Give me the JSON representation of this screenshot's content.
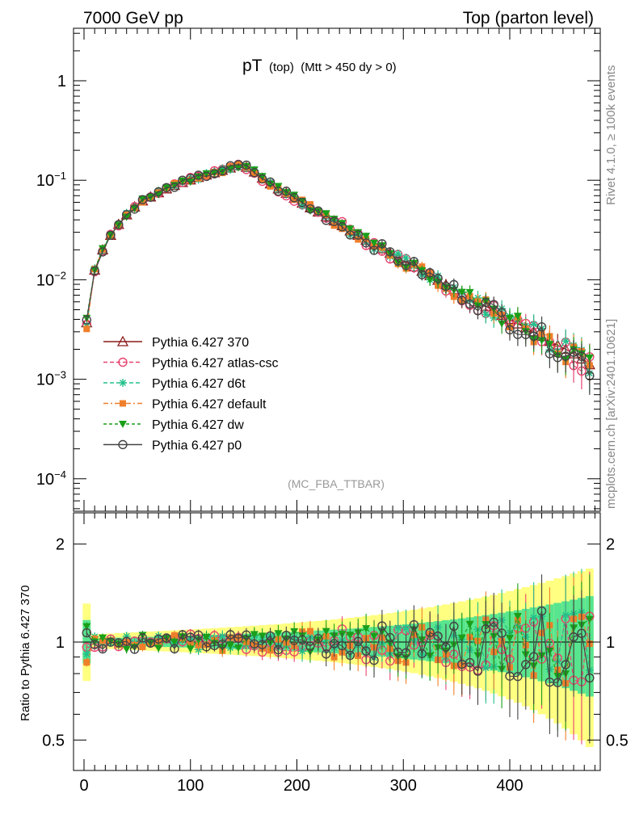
{
  "header": {
    "left": "7000 GeV pp",
    "right": "Top (parton level)"
  },
  "side_labels": {
    "rivet": "Rivet 4.1.0, ≥ 100k events",
    "mcplots": "mcplots.cern.ch [arXiv:2401.10621]"
  },
  "chart_data": {
    "type": "line",
    "title_main": "pT",
    "title_sub1": "(top)",
    "title_sub2": "(Mtt > 450 dy > 0)",
    "watermark": "(MC_FBA_TTBAR)",
    "xlabel": "",
    "ylabel": "",
    "ratio_ylabel": "Ratio to Pythia 6.427 370",
    "xlim": [
      -10,
      485
    ],
    "ylim": [
      3e-05,
      3
    ],
    "ratio_ylim": [
      0.37,
      2.3
    ],
    "x_ticks": [
      "0",
      "100",
      "200",
      "300",
      "400"
    ],
    "y_ticks": [
      {
        "m": "10",
        "e": "−4"
      },
      {
        "m": "10",
        "e": "−3"
      },
      {
        "m": "10",
        "e": "−2"
      },
      {
        "m": "10",
        "e": "−1"
      },
      {
        "m": "1",
        "e": ""
      }
    ],
    "ratio_ticks": [
      "0.5",
      "1",
      "2"
    ],
    "x": [
      2.5,
      10,
      17.5,
      25,
      32.5,
      40,
      47.5,
      55,
      62.5,
      70,
      77.5,
      85,
      92.5,
      100,
      107.5,
      115,
      122.5,
      130,
      137.5,
      145,
      152.5,
      160,
      167.5,
      175,
      182.5,
      190,
      197.5,
      205,
      212.5,
      220,
      227.5,
      235,
      242.5,
      250,
      257.5,
      265,
      272.5,
      280,
      287.5,
      295,
      302.5,
      310,
      317.5,
      325,
      332.5,
      340,
      347.5,
      355,
      362.5,
      370,
      377.5,
      385,
      392.5,
      400,
      407.5,
      415,
      422.5,
      430,
      437.5,
      445,
      452.5,
      460,
      467.5,
      475
    ],
    "reference": [
      0.0037,
      0.0125,
      0.02,
      0.028,
      0.036,
      0.045,
      0.054,
      0.062,
      0.068,
      0.075,
      0.082,
      0.089,
      0.095,
      0.101,
      0.107,
      0.113,
      0.119,
      0.126,
      0.133,
      0.14,
      0.135,
      0.121,
      0.105,
      0.092,
      0.082,
      0.074,
      0.066,
      0.059,
      0.053,
      0.048,
      0.043,
      0.039,
      0.035,
      0.031,
      0.028,
      0.025,
      0.0225,
      0.0205,
      0.0185,
      0.0165,
      0.015,
      0.0135,
      0.0122,
      0.011,
      0.0099,
      0.0089,
      0.008,
      0.0073,
      0.0066,
      0.006,
      0.0054,
      0.0049,
      0.0044,
      0.004,
      0.0036,
      0.0033,
      0.003,
      0.0027,
      0.0024,
      0.0022,
      0.002,
      0.0018,
      0.0016,
      0.0014
    ],
    "series": [
      {
        "name": "Pythia 6.427 370",
        "color": "#8b1a1a",
        "marker": "triangle-open",
        "dash": "",
        "seed": 1,
        "spread": 0.0
      },
      {
        "name": "Pythia 6.427 atlas-csc",
        "color": "#e8436f",
        "marker": "circle-open",
        "dash": "5,3",
        "seed": 2,
        "spread": 0.05
      },
      {
        "name": "Pythia 6.427 d6t",
        "color": "#22c08a",
        "marker": "star",
        "dash": "5,3",
        "seed": 3,
        "spread": 0.045
      },
      {
        "name": "Pythia 6.427 default",
        "color": "#f07f2b",
        "marker": "square-filled",
        "dash": "6,3,2,3",
        "seed": 4,
        "spread": 0.05
      },
      {
        "name": "Pythia 6.427 dw",
        "color": "#1a9f1a",
        "marker": "triangle-down-filled",
        "dash": "4,3",
        "seed": 5,
        "spread": 0.05
      },
      {
        "name": "Pythia 6.427 p0",
        "color": "#444444",
        "marker": "circle-open",
        "dash": "",
        "seed": 6,
        "spread": 0.05
      }
    ],
    "colors": {
      "band_yellow": "#ffff80",
      "band_green": "#58e58f"
    }
  }
}
